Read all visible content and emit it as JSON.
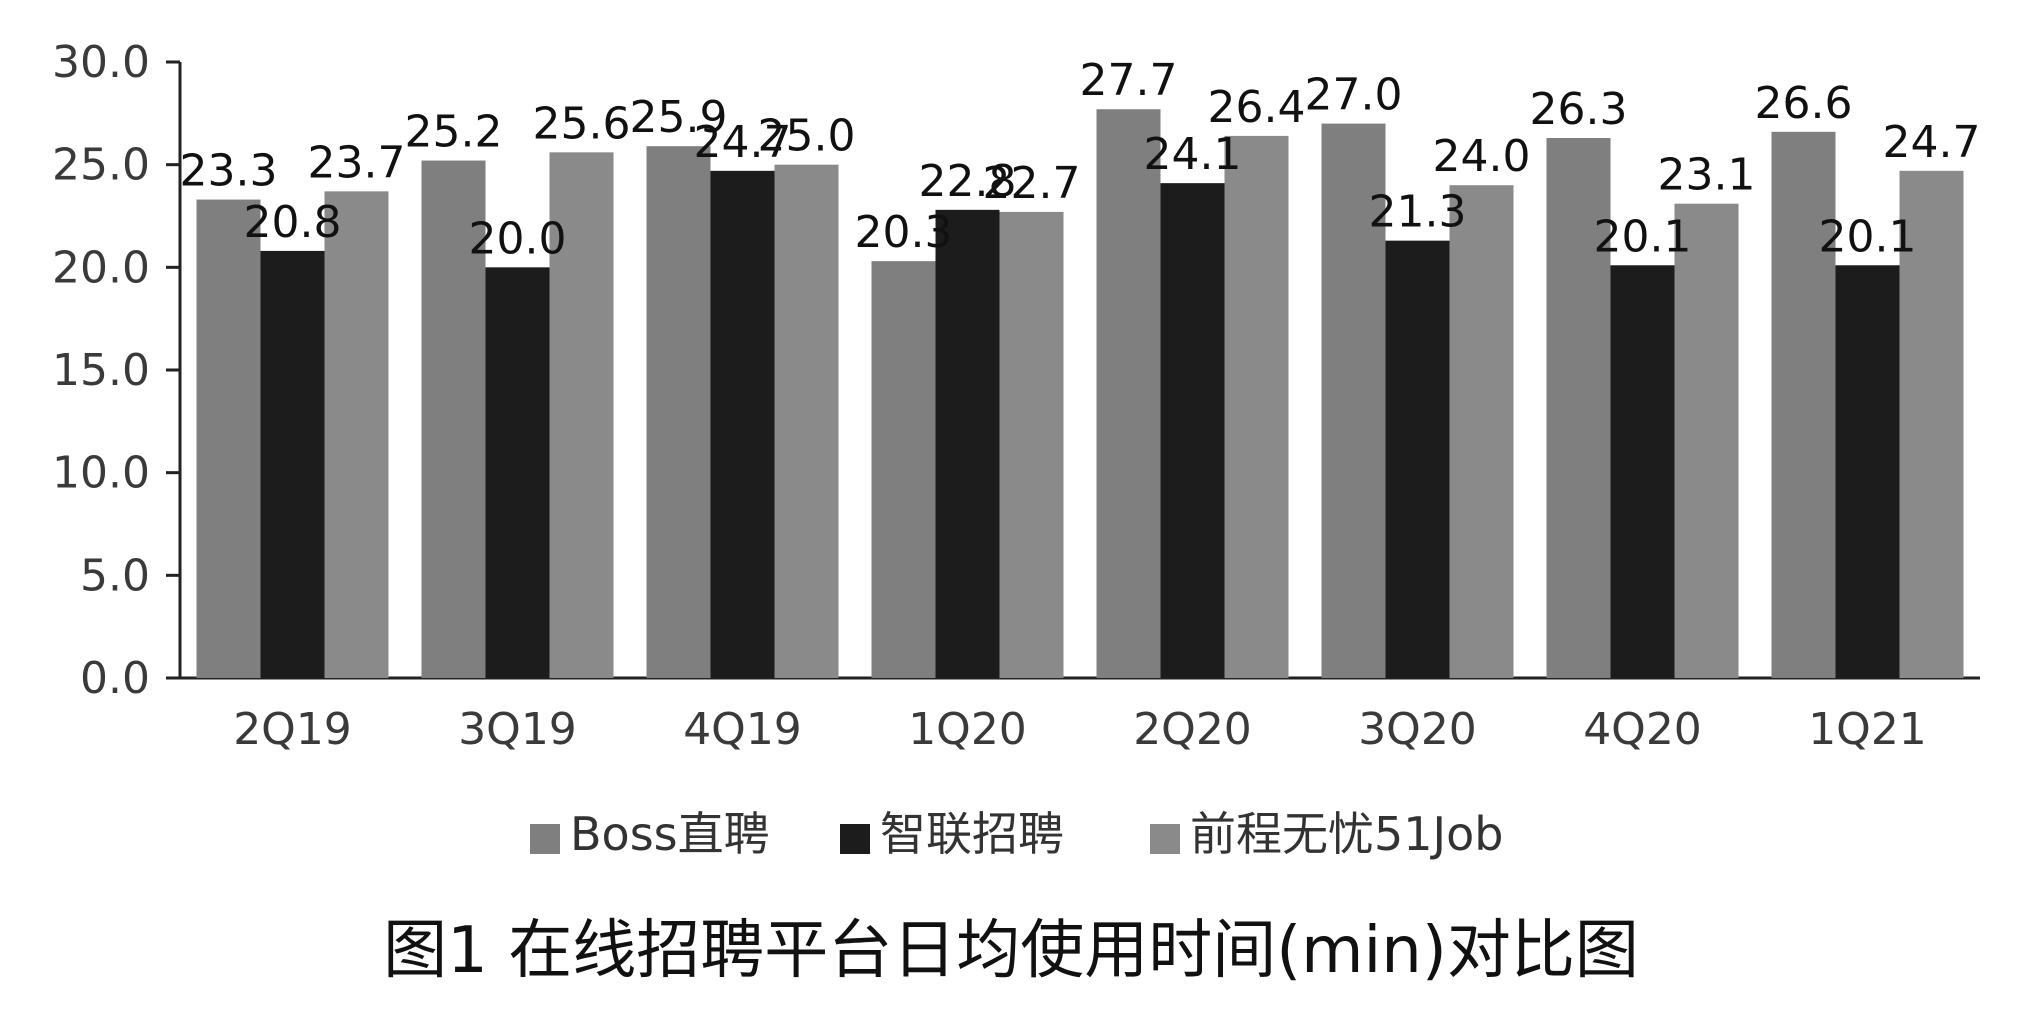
{
  "chart_data": {
    "type": "bar",
    "categories": [
      "2Q19",
      "3Q19",
      "4Q19",
      "1Q20",
      "2Q20",
      "3Q20",
      "4Q20",
      "1Q21"
    ],
    "series": [
      {
        "name": "Boss直聘",
        "color": "#7f7f7f",
        "values": [
          23.3,
          25.2,
          25.9,
          20.3,
          27.7,
          27.0,
          26.3,
          26.6
        ],
        "labels": [
          "23.3",
          "25.2",
          "25.9",
          "20.3",
          "27.7",
          "27.0",
          "26.3",
          "26.6"
        ]
      },
      {
        "name": "智联招聘",
        "color": "#1c1c1c",
        "values": [
          20.8,
          20.0,
          24.7,
          22.8,
          24.1,
          21.3,
          20.1,
          20.1
        ],
        "labels": [
          "20.8",
          "20.0",
          "24.7",
          "22.8",
          "24.1",
          "21.3",
          "20.1",
          "20.1"
        ]
      },
      {
        "name": "前程无忧51Job",
        "color": "#8a8a8a",
        "values": [
          23.7,
          25.6,
          25.0,
          22.7,
          26.4,
          24.0,
          23.1,
          24.7
        ],
        "labels": [
          "23.7",
          "25.6",
          "25.0",
          "22.7",
          "26.4",
          "24.0",
          "23.1",
          "24.7"
        ]
      }
    ],
    "ylim": [
      0,
      30
    ],
    "yticks": [
      "0.0",
      "5.0",
      "10.0",
      "15.0",
      "20.0",
      "25.0",
      "30.0"
    ],
    "legend_position": "bottom",
    "grid": false,
    "caption": "图1  在线招聘平台日均使用时间(min)对比图"
  }
}
